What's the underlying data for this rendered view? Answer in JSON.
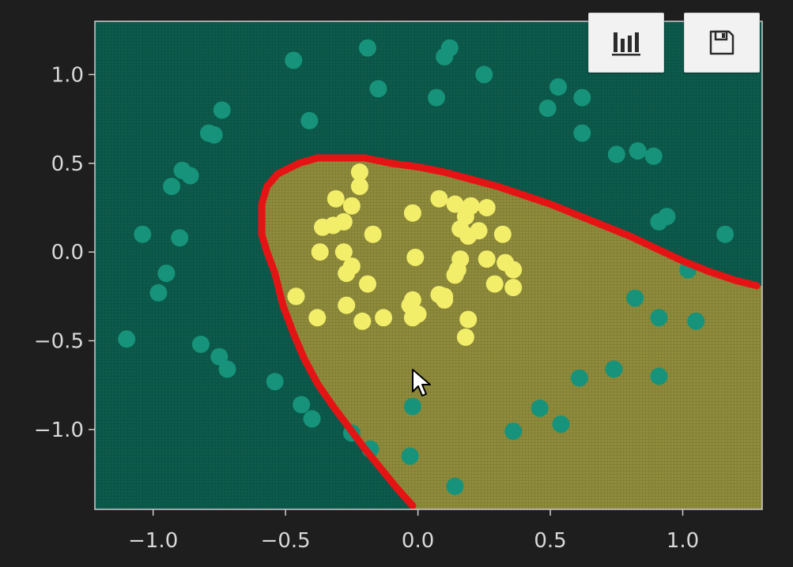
{
  "toolbar": {
    "chart_button": {
      "icon": "bar-chart-icon",
      "label": ""
    },
    "save_button": {
      "icon": "save-icon",
      "label": ""
    }
  },
  "colors": {
    "background": "#1e1e1e",
    "region_outside": "#0c5b4c",
    "region_inside": "#8f8c3c",
    "class_outer_points": "#16937a",
    "class_inner_points": "#f2ee6a",
    "boundary": "#e41414"
  },
  "chart_data": {
    "type": "scatter",
    "title": "",
    "xlabel": "",
    "ylabel": "",
    "xlim": [
      -1.22,
      1.3
    ],
    "ylim": [
      -1.45,
      1.3
    ],
    "x_ticks": [
      -1.0,
      -0.5,
      0.0,
      0.5,
      1.0
    ],
    "x_tick_labels": [
      "−1.0",
      "−0.5",
      "0.0",
      "0.5",
      "1.0"
    ],
    "y_ticks": [
      1.0,
      0.5,
      0.0,
      -0.5,
      -1.0
    ],
    "y_tick_labels": [
      "1.0",
      "0.5",
      "0.0",
      "−0.5",
      "−1.0"
    ],
    "grid": false,
    "legend": "none",
    "decision_boundary": [
      [
        -0.02,
        -1.43
      ],
      [
        -0.08,
        -1.33
      ],
      [
        -0.14,
        -1.22
      ],
      [
        -0.2,
        -1.11
      ],
      [
        -0.26,
        -0.99
      ],
      [
        -0.32,
        -0.87
      ],
      [
        -0.38,
        -0.74
      ],
      [
        -0.43,
        -0.6
      ],
      [
        -0.47,
        -0.46
      ],
      [
        -0.51,
        -0.3
      ],
      [
        -0.54,
        -0.12
      ],
      [
        -0.57,
        0.0
      ],
      [
        -0.59,
        0.1
      ],
      [
        -0.59,
        0.27
      ],
      [
        -0.57,
        0.37
      ],
      [
        -0.53,
        0.44
      ],
      [
        -0.45,
        0.5
      ],
      [
        -0.38,
        0.53
      ],
      [
        -0.2,
        0.53
      ],
      [
        -0.1,
        0.5
      ],
      [
        0.0,
        0.48
      ],
      [
        0.1,
        0.45
      ],
      [
        0.2,
        0.41
      ],
      [
        0.3,
        0.37
      ],
      [
        0.4,
        0.32
      ],
      [
        0.5,
        0.27
      ],
      [
        0.6,
        0.21
      ],
      [
        0.7,
        0.15
      ],
      [
        0.8,
        0.09
      ],
      [
        0.9,
        0.02
      ],
      [
        1.0,
        -0.05
      ],
      [
        1.1,
        -0.11
      ],
      [
        1.2,
        -0.16
      ],
      [
        1.28,
        -0.19
      ]
    ],
    "series": [
      {
        "class": "outer",
        "points": [
          [
            -0.47,
            1.08
          ],
          [
            -0.19,
            1.15
          ],
          [
            0.1,
            1.1
          ],
          [
            0.12,
            1.15
          ],
          [
            0.25,
            1.0
          ],
          [
            -0.15,
            0.92
          ],
          [
            0.07,
            0.87
          ],
          [
            0.53,
            0.93
          ],
          [
            0.62,
            0.87
          ],
          [
            0.49,
            0.81
          ],
          [
            -0.74,
            0.8
          ],
          [
            -0.41,
            0.74
          ],
          [
            -0.79,
            0.67
          ],
          [
            -0.77,
            0.66
          ],
          [
            0.62,
            0.67
          ],
          [
            -0.89,
            0.46
          ],
          [
            -0.86,
            0.43
          ],
          [
            0.75,
            0.55
          ],
          [
            0.83,
            0.57
          ],
          [
            0.89,
            0.54
          ],
          [
            -0.93,
            0.37
          ],
          [
            0.91,
            0.17
          ],
          [
            0.94,
            0.2
          ],
          [
            -1.04,
            0.1
          ],
          [
            -0.9,
            0.08
          ],
          [
            1.16,
            0.1
          ],
          [
            -0.95,
            -0.12
          ],
          [
            -0.98,
            -0.23
          ],
          [
            1.02,
            -0.1
          ],
          [
            0.82,
            -0.26
          ],
          [
            -1.1,
            -0.49
          ],
          [
            -0.82,
            -0.52
          ],
          [
            -0.75,
            -0.59
          ],
          [
            -0.72,
            -0.66
          ],
          [
            0.91,
            -0.37
          ],
          [
            1.05,
            -0.39
          ],
          [
            0.74,
            -0.66
          ],
          [
            0.61,
            -0.71
          ],
          [
            0.91,
            -0.7
          ],
          [
            -0.54,
            -0.73
          ],
          [
            -0.44,
            -0.86
          ],
          [
            -0.4,
            -0.94
          ],
          [
            -0.02,
            -0.87
          ],
          [
            0.46,
            -0.88
          ],
          [
            0.54,
            -0.97
          ],
          [
            -0.25,
            -1.02
          ],
          [
            0.36,
            -1.01
          ],
          [
            -0.18,
            -1.11
          ],
          [
            -0.03,
            -1.15
          ],
          [
            0.14,
            -1.32
          ]
        ]
      },
      {
        "class": "inner",
        "points": [
          [
            -0.22,
            0.45
          ],
          [
            -0.22,
            0.37
          ],
          [
            -0.31,
            0.3
          ],
          [
            -0.25,
            0.26
          ],
          [
            0.08,
            0.3
          ],
          [
            0.14,
            0.27
          ],
          [
            0.2,
            0.26
          ],
          [
            0.26,
            0.25
          ],
          [
            -0.02,
            0.22
          ],
          [
            0.18,
            0.2
          ],
          [
            -0.36,
            0.14
          ],
          [
            -0.32,
            0.15
          ],
          [
            -0.28,
            0.17
          ],
          [
            0.23,
            0.12
          ],
          [
            0.32,
            0.1
          ],
          [
            -0.17,
            0.1
          ],
          [
            0.19,
            0.09
          ],
          [
            0.16,
            0.13
          ],
          [
            -0.37,
            0.0
          ],
          [
            -0.28,
            0.0
          ],
          [
            -0.01,
            -0.03
          ],
          [
            0.16,
            -0.04
          ],
          [
            0.26,
            -0.04
          ],
          [
            0.33,
            -0.06
          ],
          [
            -0.25,
            -0.08
          ],
          [
            -0.27,
            -0.12
          ],
          [
            0.15,
            -0.1
          ],
          [
            0.36,
            -0.1
          ],
          [
            0.14,
            -0.13
          ],
          [
            -0.19,
            -0.18
          ],
          [
            0.29,
            -0.18
          ],
          [
            0.36,
            -0.2
          ],
          [
            0.08,
            -0.24
          ],
          [
            0.1,
            -0.25
          ],
          [
            -0.46,
            -0.25
          ],
          [
            -0.02,
            -0.27
          ],
          [
            -0.27,
            -0.3
          ],
          [
            0.1,
            -0.27
          ],
          [
            -0.03,
            -0.3
          ],
          [
            -0.38,
            -0.37
          ],
          [
            -0.13,
            -0.37
          ],
          [
            0.0,
            -0.35
          ],
          [
            -0.02,
            -0.37
          ],
          [
            -0.21,
            -0.39
          ],
          [
            0.19,
            -0.38
          ],
          [
            0.18,
            -0.48
          ]
        ]
      }
    ]
  }
}
